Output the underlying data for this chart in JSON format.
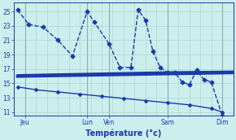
{
  "bg_color": "#cceeed",
  "grid_color": "#aad8d5",
  "line_color": "#1a3aaa",
  "xlabel": "Température (°c)",
  "ylim": [
    10.5,
    26.2
  ],
  "yticks": [
    11,
    13,
    15,
    17,
    19,
    21,
    23,
    25
  ],
  "xlim": [
    0,
    30
  ],
  "xtick_positions": [
    1.5,
    10,
    13,
    21,
    28.5
  ],
  "xtick_labels": [
    "Jeu",
    "Lun",
    "Ven",
    "Sam",
    "Dim"
  ],
  "vline_positions": [
    1.5,
    10,
    13,
    21,
    28.5
  ],
  "series": [
    {
      "x": [
        0.5,
        2,
        4,
        6,
        8,
        10,
        11,
        13,
        14.5,
        16,
        17,
        18,
        19,
        20,
        21,
        22,
        23,
        24,
        25,
        26,
        27,
        28.5
      ],
      "y": [
        25.2,
        23.2,
        22.8,
        21.0,
        18.8,
        25.0,
        23.5,
        20.5,
        17.2,
        17.2,
        25.2,
        23.8,
        19.5,
        17.2,
        16.5,
        16.5,
        15.2,
        14.8,
        16.8,
        15.5,
        15.2,
        10.5
      ],
      "marker": "D",
      "markersize": 2.5,
      "linewidth": 1.0,
      "linestyle": "--"
    },
    {
      "x": [
        0.5,
        30
      ],
      "y": [
        16.0,
        16.5
      ],
      "marker": null,
      "markersize": 0,
      "linewidth": 3.0,
      "linestyle": "-"
    },
    {
      "x": [
        0.5,
        21,
        30
      ],
      "y": [
        16.2,
        16.6,
        16.7
      ],
      "marker": null,
      "markersize": 0,
      "linewidth": 1.0,
      "linestyle": "-"
    },
    {
      "x": [
        0.5,
        3,
        6,
        9,
        12,
        15,
        18,
        21,
        24,
        27,
        28.5
      ],
      "y": [
        14.5,
        14.1,
        13.8,
        13.5,
        13.2,
        12.9,
        12.6,
        12.3,
        12.0,
        11.5,
        11.0
      ],
      "marker": "D",
      "markersize": 2.0,
      "linewidth": 1.0,
      "linestyle": "-"
    }
  ]
}
